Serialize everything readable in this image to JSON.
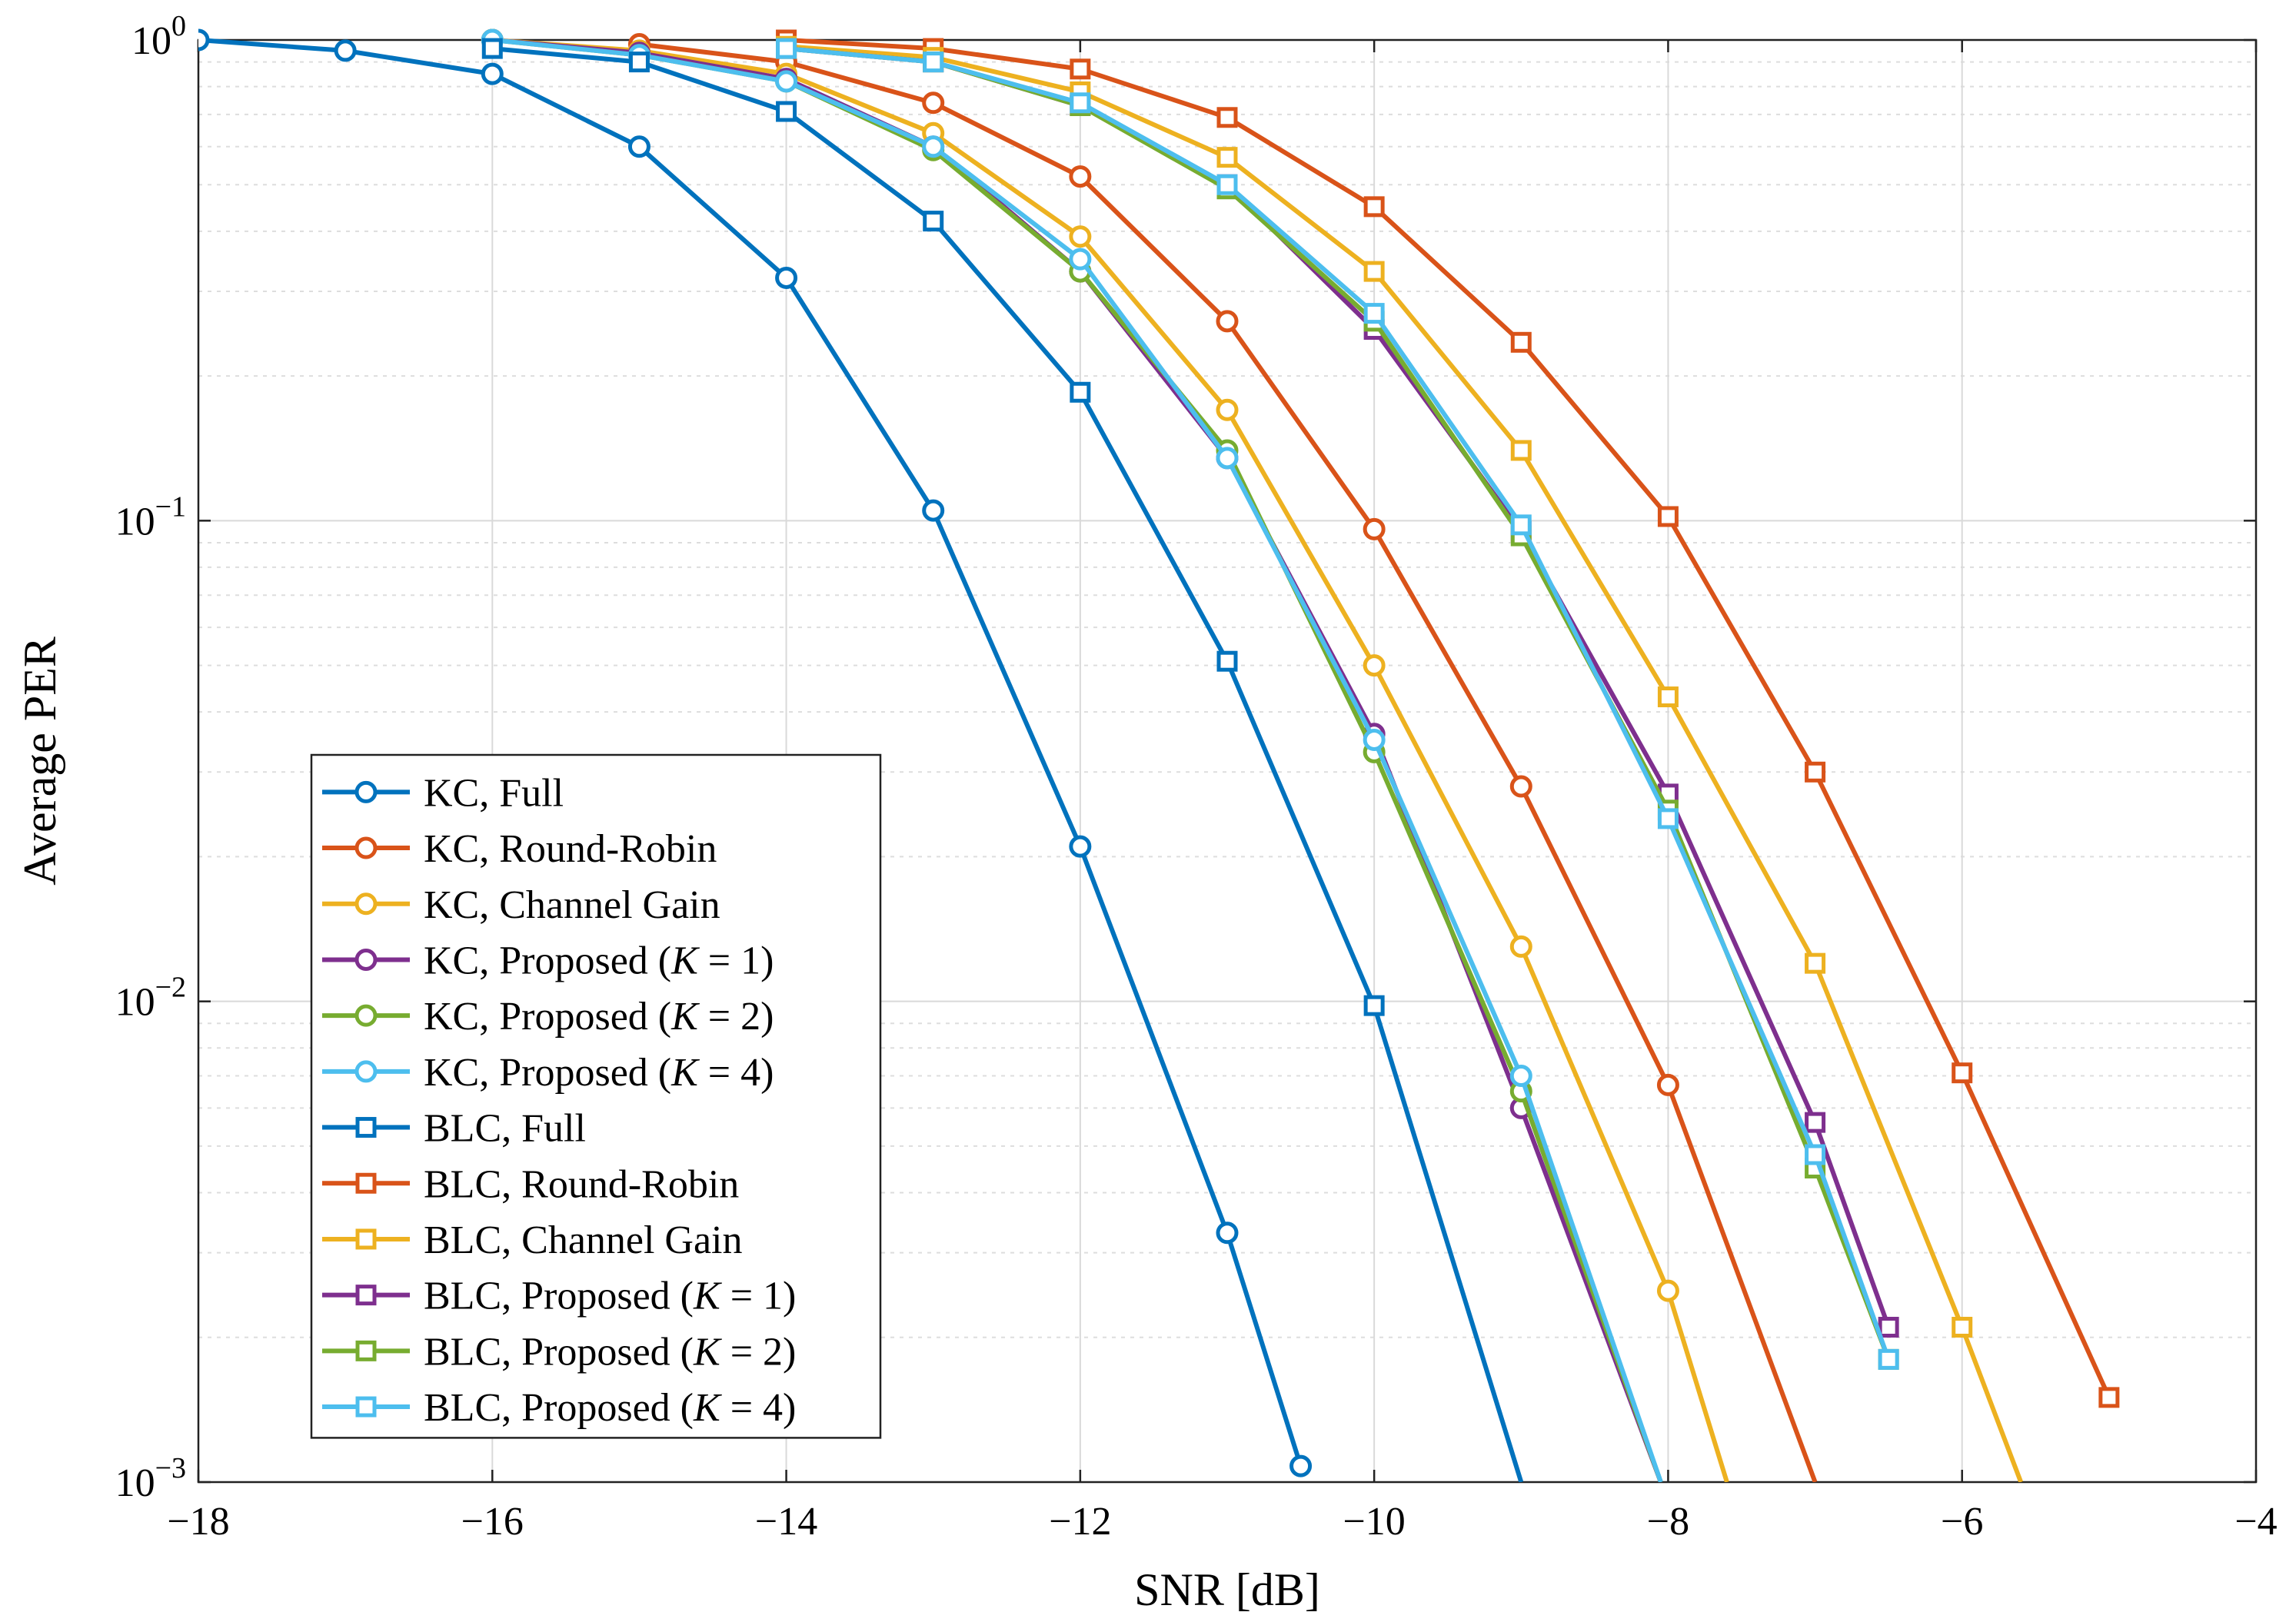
{
  "chart_data": {
    "type": "line",
    "title": "",
    "xlabel": "SNR [dB]",
    "ylabel": "Average PER",
    "xlim": [
      -18,
      -4
    ],
    "ylim": [
      0.001,
      1
    ],
    "yscale": "log",
    "grid": true,
    "legend_position": "bottom-left",
    "x_ticks": [
      -18,
      -16,
      -14,
      -12,
      -10,
      -8,
      -6,
      -4
    ],
    "x_tick_labels": [
      "−18",
      "−16",
      "−14",
      "−12",
      "−10",
      "−8",
      "−6",
      "−4"
    ],
    "y_ticks": [
      {
        "value": 1,
        "base": "10",
        "exp": "0"
      },
      {
        "value": 0.1,
        "base": "10",
        "exp": "−1"
      },
      {
        "value": 0.01,
        "base": "10",
        "exp": "−2"
      },
      {
        "value": 0.001,
        "base": "10",
        "exp": "−3"
      }
    ],
    "series": [
      {
        "name": "KC, Full",
        "label_parts": [
          {
            "text": "KC, Full",
            "italic": false
          }
        ],
        "color": "#0072BD",
        "marker": "circle",
        "x": [
          -18,
          -17,
          -16,
          -15,
          -14,
          -13,
          -12,
          -11,
          -10.5
        ],
        "y": [
          1.0,
          0.95,
          0.85,
          0.6,
          0.32,
          0.105,
          0.021,
          0.0033,
          0.00108
        ]
      },
      {
        "name": "KC, Round-Robin",
        "label_parts": [
          {
            "text": "KC, Round-Robin",
            "italic": false
          }
        ],
        "color": "#D95319",
        "marker": "circle",
        "x": [
          -15,
          -14,
          -13,
          -12,
          -11,
          -10,
          -9,
          -8,
          -7
        ],
        "y": [
          0.98,
          0.9,
          0.74,
          0.52,
          0.26,
          0.096,
          0.028,
          0.0067,
          0.001
        ]
      },
      {
        "name": "KC, Channel Gain",
        "label_parts": [
          {
            "text": "KC, Channel Gain",
            "italic": false
          }
        ],
        "color": "#EDB120",
        "marker": "circle",
        "x": [
          -16,
          -15,
          -14,
          -13,
          -12,
          -11,
          -10,
          -9,
          -8,
          -7.6
        ],
        "y": [
          1.0,
          0.95,
          0.85,
          0.64,
          0.39,
          0.17,
          0.05,
          0.013,
          0.0025,
          0.001
        ]
      },
      {
        "name": "KC, Proposed (K = 1)",
        "label_parts": [
          {
            "text": "KC, Proposed (",
            "italic": false
          },
          {
            "text": "K",
            "italic": true
          },
          {
            "text": " = 1)",
            "italic": false
          }
        ],
        "color": "#7E2F8E",
        "marker": "circle",
        "x": [
          -16,
          -15,
          -14,
          -13,
          -12,
          -11,
          -10,
          -9,
          -8.05
        ],
        "y": [
          1.0,
          0.94,
          0.83,
          0.6,
          0.33,
          0.135,
          0.036,
          0.006,
          0.001
        ]
      },
      {
        "name": "KC, Proposed (K = 2)",
        "label_parts": [
          {
            "text": "KC, Proposed (",
            "italic": false
          },
          {
            "text": "K",
            "italic": true
          },
          {
            "text": " = 2)",
            "italic": false
          }
        ],
        "color": "#77AC30",
        "marker": "circle",
        "x": [
          -16,
          -15,
          -14,
          -13,
          -12,
          -11,
          -10,
          -9,
          -8.05
        ],
        "y": [
          1.0,
          0.93,
          0.82,
          0.59,
          0.33,
          0.14,
          0.033,
          0.0065,
          0.001
        ]
      },
      {
        "name": "KC, Proposed (K = 4)",
        "label_parts": [
          {
            "text": "KC, Proposed (",
            "italic": false
          },
          {
            "text": "K",
            "italic": true
          },
          {
            "text": " = 4)",
            "italic": false
          }
        ],
        "color": "#4DBEEE",
        "marker": "circle",
        "x": [
          -16,
          -15,
          -14,
          -13,
          -12,
          -11,
          -10,
          -9,
          -8.05
        ],
        "y": [
          1.0,
          0.93,
          0.82,
          0.6,
          0.35,
          0.135,
          0.035,
          0.007,
          0.001
        ]
      },
      {
        "name": "BLC, Full",
        "label_parts": [
          {
            "text": "BLC, Full",
            "italic": false
          }
        ],
        "color": "#0072BD",
        "marker": "square",
        "x": [
          -16,
          -15,
          -14,
          -13,
          -12,
          -11,
          -10,
          -9
        ],
        "y": [
          0.96,
          0.9,
          0.71,
          0.42,
          0.185,
          0.051,
          0.0098,
          0.001
        ]
      },
      {
        "name": "BLC, Round-Robin",
        "label_parts": [
          {
            "text": "BLC, Round-Robin",
            "italic": false
          }
        ],
        "color": "#D95319",
        "marker": "square",
        "x": [
          -14,
          -13,
          -12,
          -11,
          -10,
          -9,
          -8,
          -7,
          -6,
          -5
        ],
        "y": [
          1.0,
          0.96,
          0.87,
          0.69,
          0.45,
          0.235,
          0.102,
          0.03,
          0.0071,
          0.0015
        ]
      },
      {
        "name": "BLC, Channel Gain",
        "label_parts": [
          {
            "text": "BLC, Channel Gain",
            "italic": false
          }
        ],
        "color": "#EDB120",
        "marker": "square",
        "x": [
          -14,
          -13,
          -12,
          -11,
          -10,
          -9,
          -8,
          -7,
          -6,
          -5.6
        ],
        "y": [
          0.97,
          0.92,
          0.78,
          0.57,
          0.33,
          0.14,
          0.043,
          0.012,
          0.0021,
          0.001
        ]
      },
      {
        "name": "BLC, Proposed (K = 1)",
        "label_parts": [
          {
            "text": "BLC, Proposed (",
            "italic": false
          },
          {
            "text": "K",
            "italic": true
          },
          {
            "text": " = 1)",
            "italic": false
          }
        ],
        "color": "#7E2F8E",
        "marker": "square",
        "x": [
          -14,
          -13,
          -12,
          -11,
          -10,
          -9,
          -8,
          -7,
          -6.5
        ],
        "y": [
          0.96,
          0.9,
          0.73,
          0.5,
          0.25,
          0.095,
          0.027,
          0.0056,
          0.0021
        ]
      },
      {
        "name": "BLC, Proposed (K = 2)",
        "label_parts": [
          {
            "text": "BLC, Proposed (",
            "italic": false
          },
          {
            "text": "K",
            "italic": true
          },
          {
            "text": " = 2)",
            "italic": false
          }
        ],
        "color": "#77AC30",
        "marker": "square",
        "x": [
          -14,
          -13,
          -12,
          -11,
          -10,
          -9,
          -8,
          -7,
          -6.5
        ],
        "y": [
          0.96,
          0.9,
          0.73,
          0.49,
          0.26,
          0.093,
          0.025,
          0.0045,
          0.0018
        ]
      },
      {
        "name": "BLC, Proposed (K = 4)",
        "label_parts": [
          {
            "text": "BLC, Proposed (",
            "italic": false
          },
          {
            "text": "K",
            "italic": true
          },
          {
            "text": " = 4)",
            "italic": false
          }
        ],
        "color": "#4DBEEE",
        "marker": "square",
        "x": [
          -14,
          -13,
          -12,
          -11,
          -10,
          -9,
          -8,
          -7,
          -6.5
        ],
        "y": [
          0.96,
          0.9,
          0.74,
          0.5,
          0.27,
          0.098,
          0.024,
          0.0048,
          0.0018
        ]
      }
    ]
  }
}
